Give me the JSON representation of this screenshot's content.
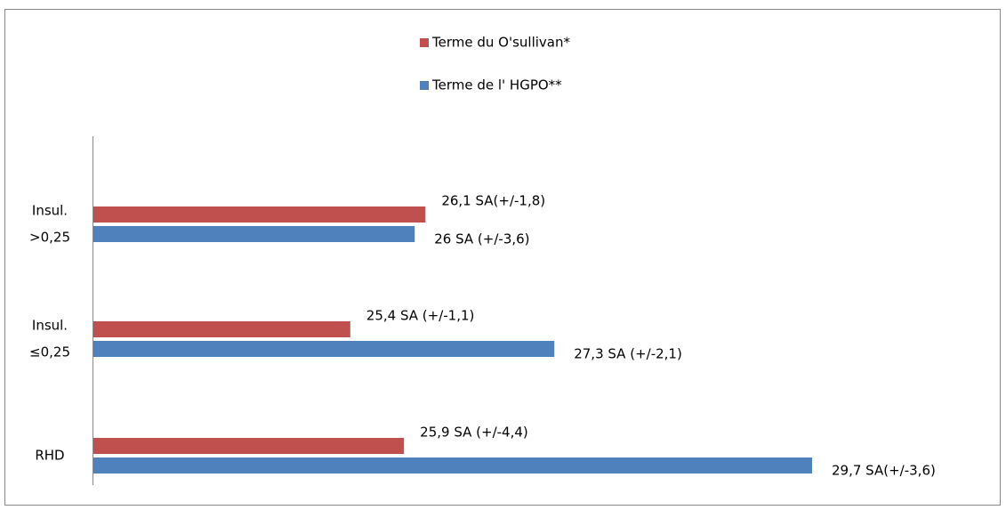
{
  "chart_data": {
    "type": "hbar",
    "categories": [
      [
        "Insul.",
        ">0,25"
      ],
      [
        "Insul.",
        "≤0,25"
      ],
      [
        "RHD"
      ]
    ],
    "series": [
      {
        "name": "Terme du O'sullivan*",
        "color": "#c0504d",
        "values": [
          26.1,
          25.4,
          25.9
        ],
        "value_labels": [
          "26,1 SA(+/-1,8)",
          "25,4 SA (+/-1,1)",
          "25,9 SA (+/-4,4)"
        ]
      },
      {
        "name": "Terme de l' HGPO**",
        "color": "#4f81bd",
        "values": [
          26,
          27.3,
          29.7
        ],
        "value_labels": [
          "26 SA (+/-3,6)",
          "27,3 SA (+/-2,1)",
          "29,7 SA(+/-3,6)"
        ]
      }
    ],
    "xlim": [
      23,
      31
    ]
  }
}
